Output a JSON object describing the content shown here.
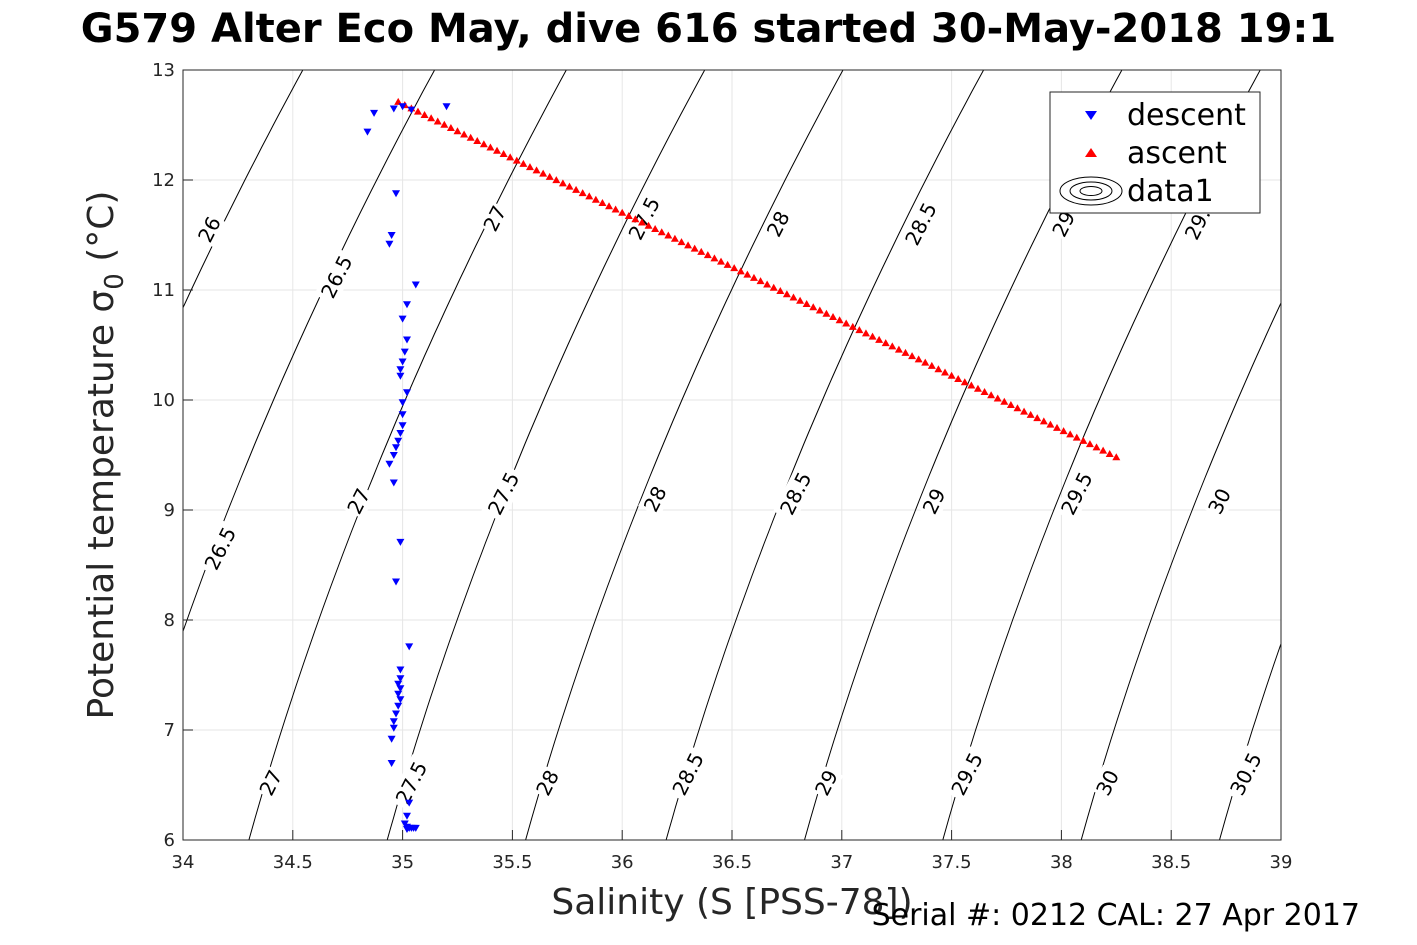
{
  "title": "G579 Alter Eco May, dive 616 started 30-May-2018 19:1",
  "footer": "Serial #: 0212  CAL: 27 Apr 2017",
  "colors": {
    "descent": "#0000ff",
    "ascent": "#ff0000",
    "contour": "#000000",
    "grid": "#e6e6e6"
  },
  "chart_data": {
    "type": "scatter",
    "xlabel": "Salinity (S [PSS-78])",
    "ylabel": "Potential temperature σ",
    "ylabel_sub": "0",
    "ylabel_unit": " (°C)",
    "xlim": [
      34,
      39
    ],
    "ylim": [
      6,
      13
    ],
    "xticks": [
      34,
      34.5,
      35,
      35.5,
      36,
      36.5,
      37,
      37.5,
      38,
      38.5,
      39
    ],
    "yticks": [
      6,
      7,
      8,
      9,
      10,
      11,
      12,
      13
    ],
    "grid": true,
    "legend": {
      "position": "top-right",
      "entries": [
        "descent",
        "ascent",
        "data1"
      ]
    },
    "series": [
      {
        "name": "descent",
        "marker": "triangle-down",
        "color": "#0000ff",
        "points": [
          [
            34.84,
            12.44
          ],
          [
            34.87,
            12.61
          ],
          [
            34.96,
            12.65
          ],
          [
            35.0,
            12.67
          ],
          [
            35.04,
            12.64
          ],
          [
            35.2,
            12.67
          ],
          [
            34.97,
            11.88
          ],
          [
            34.95,
            11.5
          ],
          [
            34.94,
            11.42
          ],
          [
            35.06,
            11.05
          ],
          [
            35.02,
            10.87
          ],
          [
            35.0,
            10.74
          ],
          [
            35.02,
            10.55
          ],
          [
            35.01,
            10.44
          ],
          [
            35.0,
            10.35
          ],
          [
            34.99,
            10.28
          ],
          [
            34.99,
            10.22
          ],
          [
            35.02,
            10.07
          ],
          [
            35.0,
            9.98
          ],
          [
            35.0,
            9.87
          ],
          [
            35.0,
            9.77
          ],
          [
            34.99,
            9.7
          ],
          [
            34.98,
            9.63
          ],
          [
            34.97,
            9.57
          ],
          [
            34.96,
            9.5
          ],
          [
            34.94,
            9.42
          ],
          [
            34.96,
            9.25
          ],
          [
            34.99,
            8.71
          ],
          [
            34.97,
            8.35
          ],
          [
            35.03,
            7.76
          ],
          [
            34.99,
            7.55
          ],
          [
            34.99,
            7.47
          ],
          [
            34.98,
            7.42
          ],
          [
            34.99,
            7.38
          ],
          [
            34.98,
            7.33
          ],
          [
            34.99,
            7.28
          ],
          [
            34.98,
            7.22
          ],
          [
            34.97,
            7.15
          ],
          [
            34.96,
            7.08
          ],
          [
            34.96,
            7.02
          ],
          [
            34.95,
            6.92
          ],
          [
            34.95,
            6.7
          ],
          [
            35.03,
            6.34
          ],
          [
            35.02,
            6.22
          ],
          [
            35.01,
            6.15
          ],
          [
            35.02,
            6.12
          ],
          [
            35.03,
            6.11
          ],
          [
            35.04,
            6.11
          ],
          [
            35.05,
            6.11
          ],
          [
            35.06,
            6.11
          ],
          [
            35.02,
            6.1
          ]
        ]
      },
      {
        "name": "ascent",
        "marker": "triangle-up",
        "color": "#ff0000",
        "x_start": 34.98,
        "x_end": 38.25,
        "y_start": 12.71,
        "y_end": 9.48,
        "count": 110
      },
      {
        "name": "data1",
        "type": "contour",
        "note": "isopycnal lines",
        "lines": [
          {
            "label": "26",
            "s_at_6": 33.1
          },
          {
            "label": "26.5",
            "s_at_6": 33.7
          },
          {
            "label": "27",
            "s_at_6": 34.3
          },
          {
            "label": "27.5",
            "s_at_6": 34.93
          },
          {
            "label": "28",
            "s_at_6": 35.56
          },
          {
            "label": "28.5",
            "s_at_6": 36.2
          },
          {
            "label": "29",
            "s_at_6": 36.83
          },
          {
            "label": "29.5",
            "s_at_6": 37.46
          },
          {
            "label": "30",
            "s_at_6": 38.09
          },
          {
            "label": "30.5",
            "s_at_6": 38.72
          }
        ],
        "contour_labels": [
          {
            "text": "26",
            "s": 34.12,
            "t": 11.55
          },
          {
            "text": "26.5",
            "s": 34.7,
            "t": 11.12
          },
          {
            "text": "27",
            "s": 35.42,
            "t": 11.65
          },
          {
            "text": "27.5",
            "s": 36.1,
            "t": 11.65
          },
          {
            "text": "28",
            "s": 36.71,
            "t": 11.6
          },
          {
            "text": "28.5",
            "s": 37.36,
            "t": 11.6
          },
          {
            "text": "29",
            "s": 38.01,
            "t": 11.6
          },
          {
            "text": "29.",
            "s": 38.62,
            "t": 11.6
          },
          {
            "text": "26.5",
            "s": 34.17,
            "t": 8.65
          },
          {
            "text": "27",
            "s": 34.8,
            "t": 9.08
          },
          {
            "text": "27.5",
            "s": 35.46,
            "t": 9.15
          },
          {
            "text": "28",
            "s": 36.15,
            "t": 9.1
          },
          {
            "text": "28.5",
            "s": 36.79,
            "t": 9.15
          },
          {
            "text": "29",
            "s": 37.42,
            "t": 9.08
          },
          {
            "text": "29.5",
            "s": 38.07,
            "t": 9.15
          },
          {
            "text": "30",
            "s": 38.72,
            "t": 9.08
          },
          {
            "text": "27",
            "s": 34.4,
            "t": 6.52
          },
          {
            "text": "27.5",
            "s": 35.04,
            "t": 6.52
          },
          {
            "text": "28",
            "s": 35.66,
            "t": 6.52
          },
          {
            "text": "28.5",
            "s": 36.3,
            "t": 6.6
          },
          {
            "text": "29",
            "s": 36.93,
            "t": 6.52
          },
          {
            "text": "29.5",
            "s": 37.57,
            "t": 6.6
          },
          {
            "text": "30",
            "s": 38.21,
            "t": 6.52
          },
          {
            "text": "30.5",
            "s": 38.84,
            "t": 6.6
          }
        ]
      }
    ]
  }
}
